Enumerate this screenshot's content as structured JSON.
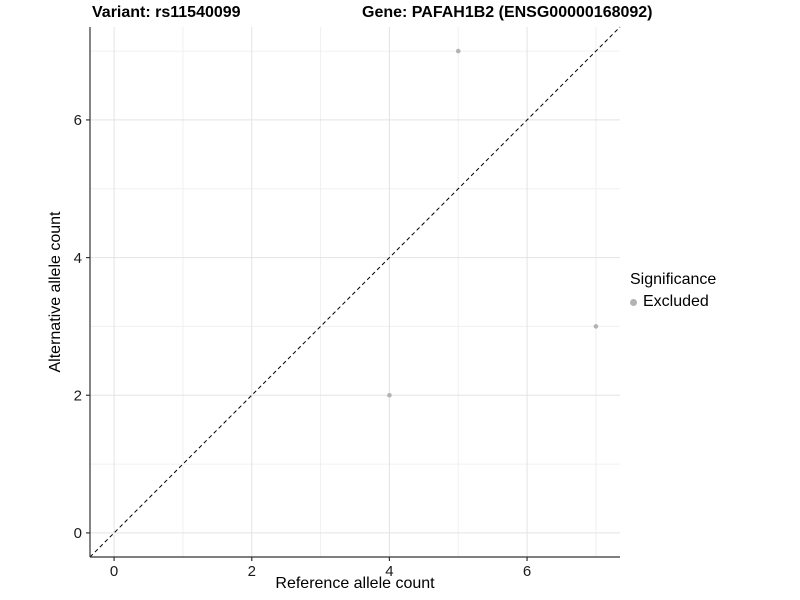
{
  "figure": {
    "titles": {
      "variant": "Variant: rs11540099",
      "gene": "Gene: PAFAH1B2 (ENSG00000168092)"
    },
    "axes": {
      "x_label": "Reference allele count",
      "y_label": "Alternative allele count"
    },
    "legend": {
      "title": "Significance",
      "items": [
        {
          "label": "Excluded",
          "marker": "circle-icon",
          "color": "#b3b3b3"
        }
      ]
    }
  },
  "chart_data": {
    "type": "scatter",
    "title": "Variant: rs11540099 — Gene: PAFAH1B2 (ENSG00000168092)",
    "xlabel": "Reference allele count",
    "ylabel": "Alternative allele count",
    "xlim": [
      -0.35,
      7.35
    ],
    "ylim": [
      -0.35,
      7.35
    ],
    "x_ticks": [
      0,
      2,
      4,
      6
    ],
    "y_ticks": [
      0,
      2,
      4,
      6
    ],
    "x_minor_gridlines": [
      1,
      3,
      5,
      7
    ],
    "y_minor_gridlines": [
      1,
      3,
      5,
      7
    ],
    "grid": "major+minor",
    "legend_position": "right",
    "series": [
      {
        "name": "Excluded",
        "color": "#b3b3b3",
        "points": [
          {
            "x": 4,
            "y": 2
          },
          {
            "x": 5,
            "y": 7
          },
          {
            "x": 7,
            "y": 3
          }
        ]
      }
    ],
    "reference_line": {
      "kind": "identity y=x",
      "style": "dashed",
      "color": "#000000"
    }
  },
  "style": {
    "colors": {
      "background": "#ffffff",
      "grid_major": "#e3e3e3",
      "grid_minor": "#f0f0f0",
      "axis_line": "#333333",
      "tick_label": "#1a1a1a",
      "point": "#b3b3b3"
    }
  }
}
